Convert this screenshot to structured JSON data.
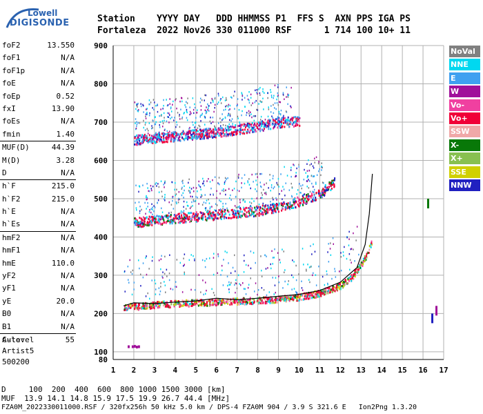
{
  "logo": {
    "line1": "Lowell",
    "line2": "DIGISONDE"
  },
  "header": {
    "row1": "Station    YYYY DAY   DDD HHMMSS P1  FFS S  AXN PPS IGA PS",
    "row2": "Fortaleza  2022 Nov26 330 011000 RSF      1 714 100 10+ 11"
  },
  "params": {
    "group1": [
      {
        "name": "foF2",
        "value": "13.550"
      },
      {
        "name": "foF1",
        "value": "N/A"
      },
      {
        "name": "foF1p",
        "value": "N/A"
      },
      {
        "name": "foE",
        "value": "N/A"
      },
      {
        "name": "foEp",
        "value": "0.52"
      },
      {
        "name": "fxI",
        "value": "13.90"
      },
      {
        "name": "foEs",
        "value": "N/A"
      },
      {
        "name": "fmin",
        "value": "1.40"
      }
    ],
    "group2": [
      {
        "name": "MUF(D)",
        "value": "44.39"
      },
      {
        "name": "M(D)",
        "value": "3.28"
      },
      {
        "name": "D",
        "value": "N/A"
      }
    ],
    "group3": [
      {
        "name": "h`F",
        "value": "215.0"
      },
      {
        "name": "h`F2",
        "value": "215.0"
      },
      {
        "name": "h`E",
        "value": "N/A"
      },
      {
        "name": "h`Es",
        "value": "N/A"
      }
    ],
    "group4": [
      {
        "name": "hmF2",
        "value": "N/A"
      },
      {
        "name": "hmF1",
        "value": "N/A"
      },
      {
        "name": "hmE",
        "value": "110.0"
      },
      {
        "name": "yF2",
        "value": "N/A"
      },
      {
        "name": "yF1",
        "value": "N/A"
      },
      {
        "name": "yE",
        "value": "20.0"
      },
      {
        "name": "B0",
        "value": "N/A"
      },
      {
        "name": "B1",
        "value": "N/A"
      }
    ],
    "group5": [
      {
        "name": "C-level",
        "value": "55"
      }
    ]
  },
  "auto": {
    "label": "Auto:",
    "system": "Artist5",
    "version": "500200"
  },
  "legend": [
    {
      "label": "NoVal",
      "color": "#808080"
    },
    {
      "label": "NNE",
      "color": "#00d8f0"
    },
    {
      "label": "E",
      "color": "#3fa0f0"
    },
    {
      "label": "W",
      "color": "#a0109a"
    },
    {
      "label": "Vo-",
      "color": "#f040a0"
    },
    {
      "label": "Vo+",
      "color": "#f00038"
    },
    {
      "label": "SSW",
      "color": "#f0a8a8"
    },
    {
      "label": "X-",
      "color": "#087808"
    },
    {
      "label": "X+",
      "color": "#88c050"
    },
    {
      "label": "SSE",
      "color": "#d0d000"
    },
    {
      "label": "NNW",
      "color": "#2020c0"
    }
  ],
  "footer": {
    "distance_row": "D     100  200  400  600  800 1000 1500 3000 [km]",
    "muf_row": "MUF  13.9 14.1 14.8 15.9 17.5 19.9 26.7 44.4 [MHz]",
    "file_row": "FZA0M_2022330011000.RSF / 320fx256h 50 kHz 5.0 km / DPS-4 FZA0M 904 / 3.9 S 321.6 E   Ion2Png 1.3.20"
  },
  "chart_data": {
    "type": "scatter",
    "title": "",
    "xlabel": "",
    "ylabel": "",
    "xlim": [
      1,
      17
    ],
    "ylim": [
      80,
      900
    ],
    "x_ticks": [
      1,
      2,
      3,
      4,
      5,
      6,
      7,
      8,
      9,
      10,
      11,
      12,
      13,
      14,
      15,
      16,
      17
    ],
    "y_ticks": [
      100,
      200,
      300,
      400,
      500,
      600,
      700,
      800,
      900
    ],
    "grid": true,
    "legend_position": "right",
    "series": [
      {
        "name": "O-trace first hop",
        "x": [
          1.5,
          2.0,
          3.0,
          4.0,
          5.0,
          6.0,
          7.0,
          8.0,
          9.0,
          10.0,
          11.0,
          12.0,
          12.5,
          13.0,
          13.3,
          13.5
        ],
        "y": [
          220,
          220,
          225,
          228,
          230,
          232,
          234,
          236,
          240,
          245,
          255,
          275,
          295,
          330,
          360,
          390
        ]
      },
      {
        "name": "Second hop",
        "x": [
          2.0,
          3.0,
          4.0,
          5.0,
          6.0,
          7.0,
          8.0,
          9.0,
          10.0,
          11.0,
          11.7
        ],
        "y": [
          440,
          445,
          450,
          455,
          460,
          465,
          470,
          480,
          495,
          515,
          545
        ]
      },
      {
        "name": "Third hop",
        "x": [
          2.0,
          3.0,
          4.0,
          5.0,
          6.0,
          7.0,
          8.0,
          9.0,
          10.0
        ],
        "y": [
          655,
          660,
          665,
          670,
          675,
          683,
          690,
          700,
          705
        ]
      },
      {
        "name": "Profile curve",
        "x": [
          1.5,
          2.0,
          3.0,
          4.0,
          5.0,
          6.0,
          7.0,
          8.0,
          9.0,
          10.0,
          11.0,
          12.0,
          12.8,
          13.2,
          13.4,
          13.55
        ],
        "y": [
          220,
          228,
          226,
          230,
          233,
          240,
          236,
          240,
          245,
          250,
          260,
          282,
          320,
          380,
          460,
          565
        ]
      },
      {
        "name": "Low echoes",
        "x": [
          1.7,
          1.9,
          2.0,
          2.1,
          2.2,
          16.2,
          16.4,
          16.6
        ],
        "y": [
          117,
          117,
          118,
          116,
          117,
          500,
          200,
          220
        ]
      }
    ]
  }
}
